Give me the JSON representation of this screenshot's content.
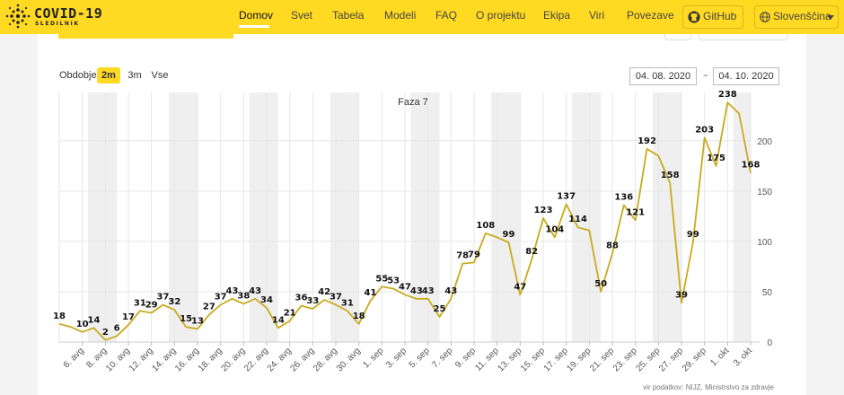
{
  "logo": {
    "title": "COVID-19",
    "subtitle": "SLEDILNIK"
  },
  "nav": {
    "items": [
      "Domov",
      "Svet",
      "Tabela",
      "Modeli",
      "FAQ",
      "O projektu",
      "Ekipa",
      "Viri",
      "Povezave"
    ],
    "active": "Domov",
    "github_label": "GitHub",
    "language_label": "Slovenščina"
  },
  "controls": {
    "period_label": "Obdobje",
    "period_options": [
      "2m",
      "3m",
      "Vse"
    ],
    "period_selected": "2m",
    "date_from": "04. 08. 2020",
    "date_sep": "–",
    "date_to": "04. 10. 2020"
  },
  "source": "vir podatkov: NIJZ, Ministrstvo za zdravje",
  "colors": {
    "accent": "#ffd922",
    "line": "#c9aa1d",
    "band": "#efefef"
  },
  "chart_data": {
    "type": "line",
    "phase_label": "Faza 7",
    "x_tick_labels": [
      "6. avg",
      "8. avg",
      "10. avg",
      "12. avg",
      "14. avg",
      "16. avg",
      "18. avg",
      "20. avg",
      "22. avg",
      "24. avg",
      "26. avg",
      "28. avg",
      "30. avg",
      "1. sep",
      "3. sep",
      "5. sep",
      "7. sep",
      "9. sep",
      "11. sep",
      "13. sep",
      "15. sep",
      "17. sep",
      "19. sep",
      "21. sep",
      "23. sep",
      "25. sep",
      "27. sep",
      "29. sep",
      "1. okt",
      "3. okt"
    ],
    "y_ticks": [
      0,
      50,
      100,
      150,
      200
    ],
    "ylim": [
      0,
      248
    ],
    "values": [
      18,
      15,
      10,
      14,
      2,
      6,
      17,
      31,
      29,
      37,
      32,
      15,
      13,
      27,
      37,
      43,
      38,
      43,
      34,
      14,
      21,
      36,
      33,
      42,
      37,
      31,
      18,
      41,
      55,
      53,
      47,
      43,
      43,
      25,
      43,
      78,
      79,
      108,
      104,
      99,
      47,
      82,
      123,
      104,
      137,
      114,
      111,
      50,
      88,
      136,
      121,
      192,
      185,
      158,
      39,
      99,
      203,
      175,
      238,
      227,
      168
    ],
    "labeled": [
      {
        "i": 0,
        "v": 18
      },
      {
        "i": 2,
        "v": 10
      },
      {
        "i": 3,
        "v": 14
      },
      {
        "i": 4,
        "v": 2
      },
      {
        "i": 5,
        "v": 6
      },
      {
        "i": 6,
        "v": 17
      },
      {
        "i": 7,
        "v": 31
      },
      {
        "i": 8,
        "v": 29
      },
      {
        "i": 9,
        "v": 37
      },
      {
        "i": 10,
        "v": 32
      },
      {
        "i": 11,
        "v": 15
      },
      {
        "i": 12,
        "v": 13
      },
      {
        "i": 13,
        "v": 27
      },
      {
        "i": 14,
        "v": 37
      },
      {
        "i": 15,
        "v": 43
      },
      {
        "i": 16,
        "v": 38
      },
      {
        "i": 17,
        "v": 43
      },
      {
        "i": 18,
        "v": 34
      },
      {
        "i": 19,
        "v": 14
      },
      {
        "i": 20,
        "v": 21
      },
      {
        "i": 21,
        "v": 36
      },
      {
        "i": 22,
        "v": 33
      },
      {
        "i": 23,
        "v": 42
      },
      {
        "i": 24,
        "v": 37
      },
      {
        "i": 25,
        "v": 31
      },
      {
        "i": 26,
        "v": 18
      },
      {
        "i": 27,
        "v": 41
      },
      {
        "i": 28,
        "v": 55
      },
      {
        "i": 29,
        "v": 53
      },
      {
        "i": 30,
        "v": 47
      },
      {
        "i": 31,
        "v": 43
      },
      {
        "i": 32,
        "v": 43
      },
      {
        "i": 33,
        "v": 25
      },
      {
        "i": 34,
        "v": 43
      },
      {
        "i": 35,
        "v": 78
      },
      {
        "i": 36,
        "v": 79
      },
      {
        "i": 37,
        "v": 108
      },
      {
        "i": 39,
        "v": 99
      },
      {
        "i": 40,
        "v": 47
      },
      {
        "i": 41,
        "v": 82
      },
      {
        "i": 42,
        "v": 123
      },
      {
        "i": 43,
        "v": 104
      },
      {
        "i": 44,
        "v": 137
      },
      {
        "i": 45,
        "v": 114
      },
      {
        "i": 47,
        "v": 50
      },
      {
        "i": 48,
        "v": 88
      },
      {
        "i": 49,
        "v": 136
      },
      {
        "i": 50,
        "v": 121
      },
      {
        "i": 51,
        "v": 192
      },
      {
        "i": 53,
        "v": 158
      },
      {
        "i": 54,
        "v": 39
      },
      {
        "i": 55,
        "v": 99
      },
      {
        "i": 56,
        "v": 203
      },
      {
        "i": 57,
        "v": 175
      },
      {
        "i": 58,
        "v": 238
      },
      {
        "i": 60,
        "v": 168
      }
    ]
  }
}
